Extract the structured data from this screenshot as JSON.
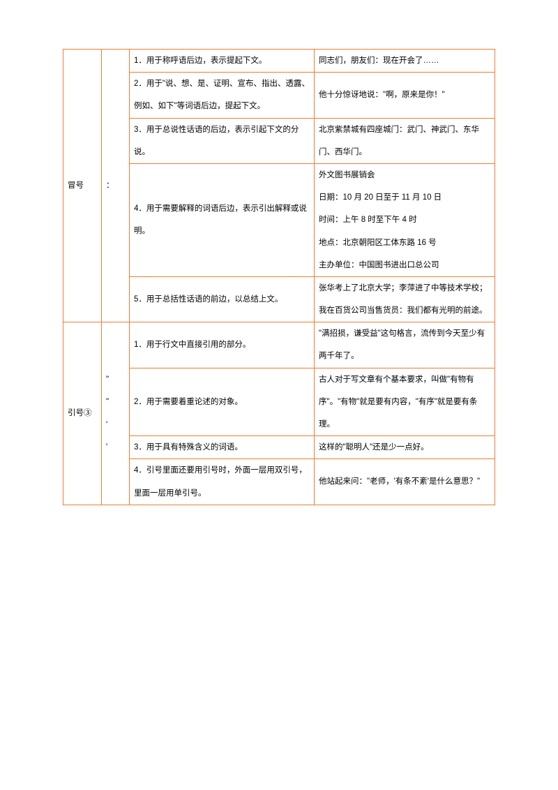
{
  "border_color": "#ed7d31",
  "text_color": "#000000",
  "font_size": 11.5,
  "groups": [
    {
      "name": "冒号",
      "symbol": "：",
      "rows": [
        {
          "usage": "1．用于称呼语后边，表示提起下文。",
          "example": "同志们，朋友们：现在开会了……"
        },
        {
          "usage": "2．用于\"说、想、是、证明、宣布、指出、透露、例如、如下\"等词语后边，提起下文。",
          "example": "他十分惊讶地说：\"啊，原来是你！\""
        },
        {
          "usage": "3．用于总说性话语的后边，表示引起下文的分说。",
          "example": "北京紫禁城有四座城门：武门、神武门、东华门、西华门。"
        },
        {
          "usage": "4．用于需要解释的词语后边，表示引出解释或说明。",
          "example": "外文图书展销会\n日期：10 月 20 日至于 11 月 10 日\n时间：上午 8 时至下午 4 时\n地点：北京朝阳区工体东路 16 号\n主办单位：中国图书进出口总公司"
        },
        {
          "usage": "5．用于总括性话语的前边，以总结上文。",
          "example": "张华考上了北京大学；李萍进了中等技术学校；我在百货公司当售货员：我们都有光明的前途。"
        }
      ]
    },
    {
      "name": "引号③",
      "symbol": "\"\n\"\n'\n'",
      "rows": [
        {
          "usage": "1．用于行文中直接引用的部分。",
          "example": "\"满招损，谦受益\"这句格言，流传到今天至少有两千年了。"
        },
        {
          "usage": "2．用于需要着重论述的对象。",
          "example": "古人对于写文章有个基本要求，叫做\"有物有序\"。\"有物\"就是要有内容，\"有序\"就是要有条理。"
        },
        {
          "usage": "3．用于具有特殊含义的词语。",
          "example": "这样的\"聪明人\"还是少一点好。"
        },
        {
          "usage": "4．引号里面还要用引号时，外面一层用双引号，里面一层用单引号。",
          "example": "他站起来问：\"老师，'有条不紊'是什么意思？\""
        }
      ]
    }
  ]
}
